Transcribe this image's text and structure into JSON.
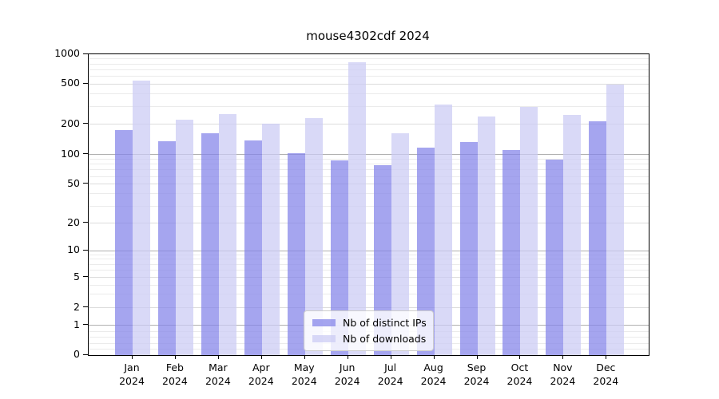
{
  "page": {
    "background": "#ffffff"
  },
  "chart_data": {
    "type": "bar",
    "title": "mouse4302cdf 2024",
    "categories": [
      "Jan",
      "Feb",
      "Mar",
      "Apr",
      "May",
      "Jun",
      "Jul",
      "Aug",
      "Sep",
      "Oct",
      "Nov",
      "Dec"
    ],
    "x_tick_second_line": "2024",
    "series": [
      {
        "name": "Nb of distinct IPs",
        "color": "#a5a5ef",
        "values": [
          177,
          136,
          163,
          138,
          103,
          87,
          78,
          118,
          133,
          111,
          88,
          216
        ]
      },
      {
        "name": "Nb of downloads",
        "color": "#d9d9f7",
        "values": [
          541,
          224,
          253,
          202,
          231,
          831,
          164,
          316,
          239,
          295,
          249,
          494
        ]
      }
    ],
    "yticks": [
      0,
      1,
      2,
      5,
      10,
      20,
      50,
      100,
      200,
      500,
      1000
    ],
    "ylim": [
      0,
      1000
    ],
    "scale": "symlog (log above 1, linear 0-1)",
    "grid": true,
    "legend_position": "lower center",
    "axis_color": "#000000",
    "grid_major_color": "#b0b0b0",
    "grid_minor_color": "#ebebeb"
  }
}
